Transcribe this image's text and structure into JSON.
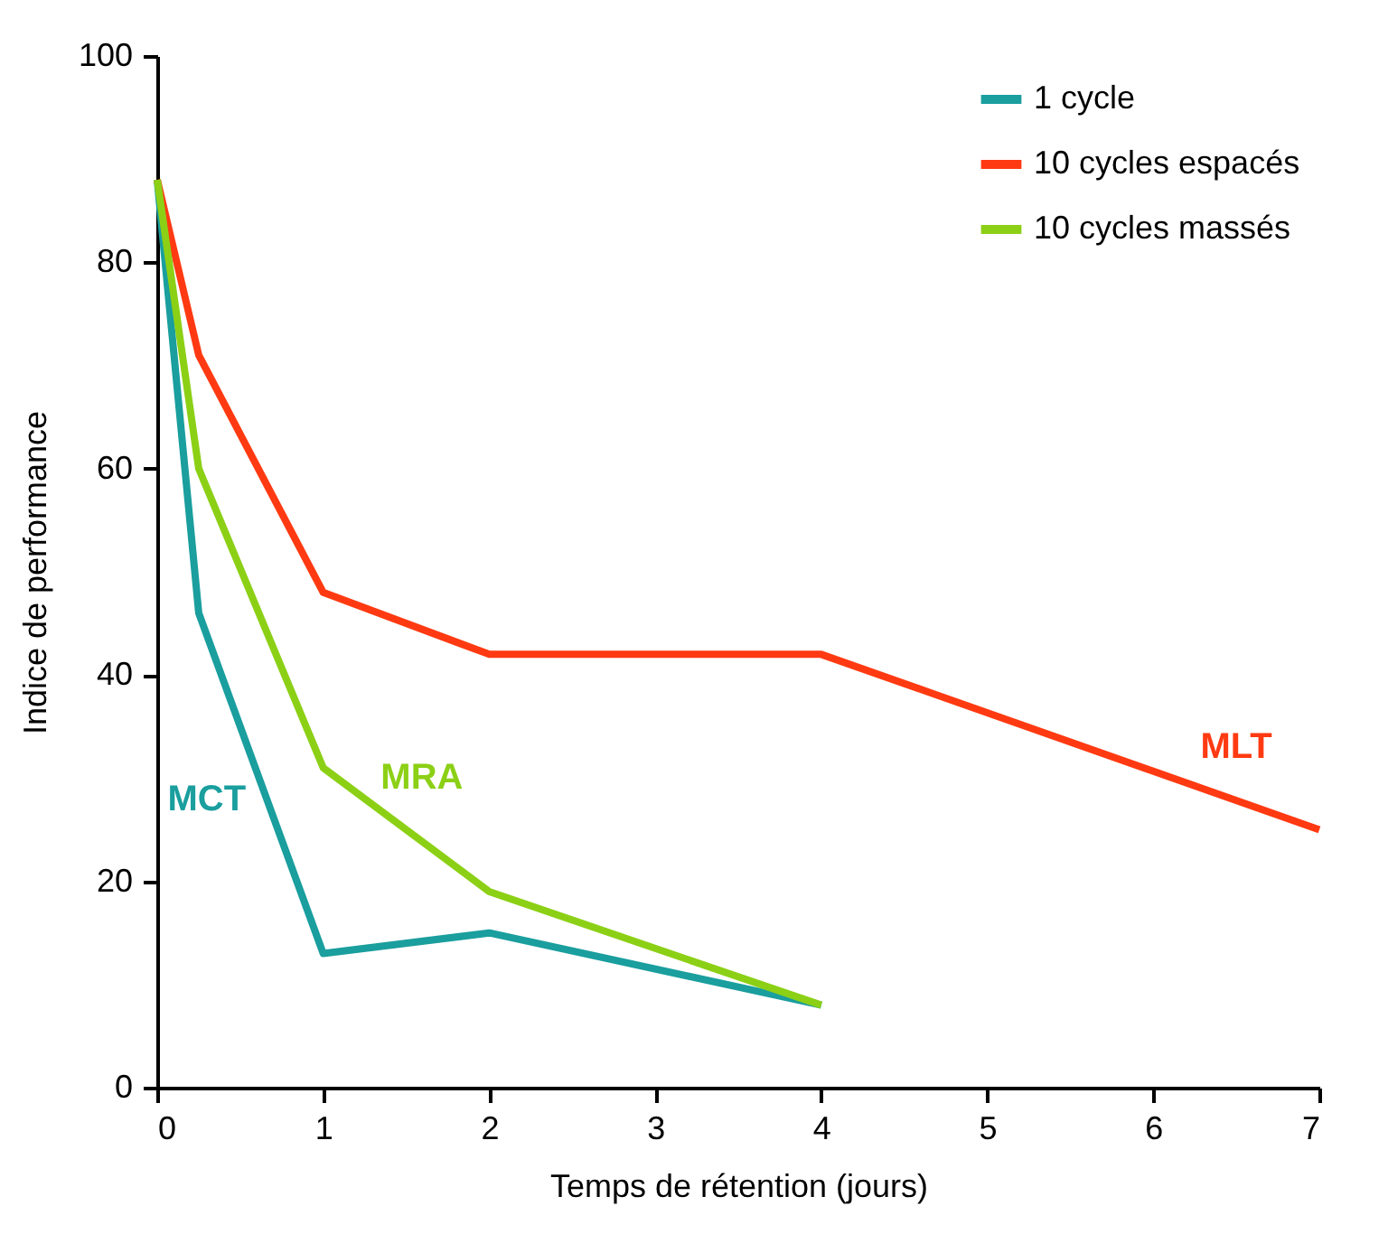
{
  "chart_data": {
    "type": "line",
    "xlabel": "Temps de rétention (jours)",
    "ylabel": "Indice de performance",
    "xlim": [
      0,
      7
    ],
    "xticks": [
      0,
      1,
      2,
      3,
      4,
      5,
      6,
      7
    ],
    "ylim": [
      0,
      100
    ],
    "yticks": [
      0,
      20,
      40,
      60,
      80,
      100
    ],
    "grid": false,
    "legend": "top right",
    "marker": "none",
    "line_style": "solid",
    "series": [
      {
        "name": "1 cycle",
        "color": "#1a9e9e",
        "x": [
          0,
          0.25,
          1,
          2,
          4
        ],
        "values": [
          88,
          46,
          13,
          15,
          8
        ]
      },
      {
        "name": "10 cycles espacés",
        "color": "#ff3a12",
        "x": [
          0,
          0.25,
          1,
          2,
          4,
          7
        ],
        "values": [
          88,
          71,
          48,
          42,
          42,
          25
        ]
      },
      {
        "name": "10 cycles massés",
        "color": "#8cd016",
        "x": [
          0,
          0.25,
          1,
          2,
          4
        ],
        "values": [
          88,
          60,
          31,
          19,
          8
        ]
      }
    ],
    "annotations": [
      "MCT",
      "MLT",
      "MRA"
    ]
  }
}
